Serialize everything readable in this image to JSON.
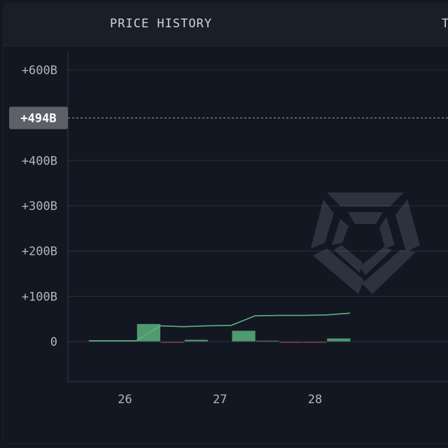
{
  "tabs": [
    {
      "label": "PRICE HISTORY"
    },
    {
      "label": "T"
    }
  ],
  "chart_data": {
    "type": "bar",
    "yticks": [
      "+600B",
      "+400B",
      "+300B",
      "+200B",
      "+100B",
      "0"
    ],
    "ytick_values": [
      600,
      400,
      300,
      200,
      100,
      0
    ],
    "xticks": [
      "26",
      "27",
      "28"
    ],
    "xtick_values": [
      26,
      27,
      28
    ],
    "ylim": [
      -88,
      640
    ],
    "xlim": [
      25.4,
      29.4
    ],
    "crosshair": {
      "label": "+494B",
      "value": 494
    },
    "bar_width": 0.25,
    "bars": [
      {
        "x": 25.75,
        "value": 2
      },
      {
        "x": 26.0,
        "value": 2
      },
      {
        "x": 26.25,
        "value": 39
      },
      {
        "x": 26.5,
        "value": -1
      },
      {
        "x": 26.75,
        "value": 4
      },
      {
        "x": 27.25,
        "value": 24
      },
      {
        "x": 27.5,
        "value": 2
      },
      {
        "x": 27.75,
        "value": -1
      },
      {
        "x": 28.0,
        "value": -1
      },
      {
        "x": 28.25,
        "value": 7
      }
    ],
    "line": {
      "x": [
        25.62,
        25.87,
        26.12,
        26.37,
        26.62,
        26.87,
        27.12,
        27.37,
        27.62,
        27.87,
        28.12,
        28.37
      ],
      "values": [
        2,
        2,
        2,
        35,
        33,
        35,
        36,
        57,
        58,
        58,
        59,
        63
      ]
    },
    "colors": {
      "up": "#4f9a6e",
      "down": "#b2474d",
      "line": "#5fb27e",
      "grid": "#2a2e39",
      "crosshair": "#9aa3ad",
      "label_bg": "#5d6068"
    }
  }
}
